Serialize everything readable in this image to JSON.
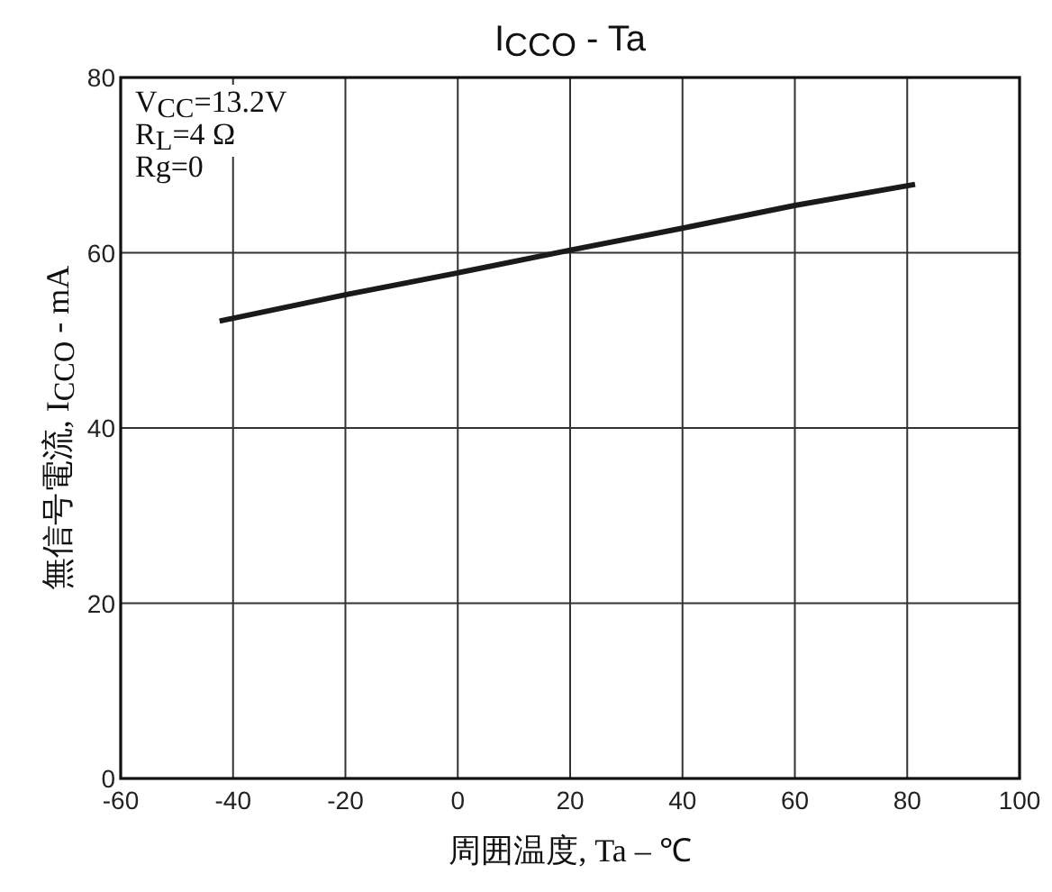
{
  "chart_data": {
    "type": "line",
    "title": "I$_{CCO}$ - Ta",
    "xlabel": "周囲温度, Ta – ℃",
    "ylabel": "無信号電流, I$_{CCO}$ - mA",
    "annotations": [
      "V$_{CC}$=13.2V",
      "R$_{L}$=4 Ω",
      "Rg=0"
    ],
    "x": [
      -42.4,
      -20,
      0,
      20,
      40,
      60,
      81.4
    ],
    "series": [
      {
        "color": "#1a1a1a",
        "values": [
          52.2,
          55.2,
          57.7,
          60.3,
          62.8,
          65.4,
          67.8
        ]
      }
    ],
    "xlim": [
      -60,
      100
    ],
    "xticks": [
      -60,
      -40,
      -20,
      0,
      20,
      40,
      60,
      80,
      100
    ],
    "ylim": [
      0,
      80
    ],
    "yticks": [
      0,
      20,
      40,
      60,
      80
    ],
    "grid": true,
    "marker": "none",
    "line_style": "solid"
  }
}
